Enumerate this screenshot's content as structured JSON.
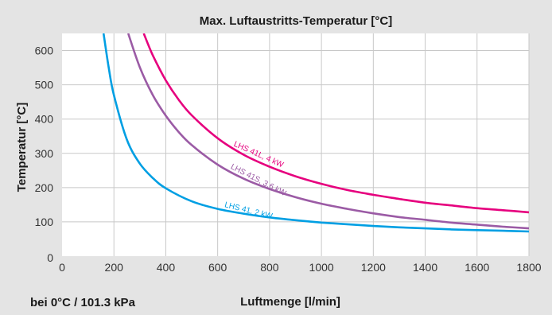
{
  "chart_data": {
    "type": "line",
    "title": "Max. Luftaustritts-Temperatur [°C]",
    "xlabel": "Luftmenge [l/min]",
    "ylabel": "Temperatur [°C]",
    "note": "bei 0°C / 101.3 kPa",
    "xlim": [
      0,
      1800
    ],
    "ylim": [
      0,
      650
    ],
    "xticks": [
      0,
      200,
      400,
      600,
      800,
      1000,
      1200,
      1400,
      1600,
      1800
    ],
    "yticks": [
      0,
      100,
      200,
      300,
      400,
      500,
      600
    ],
    "x_tick_labels": [
      "0",
      "200",
      "400",
      "600",
      "800",
      "1000",
      "1200",
      "1400",
      "1600",
      "1800"
    ],
    "y_tick_labels": [
      "0",
      "100",
      "200",
      "300",
      "400",
      "500",
      "600"
    ],
    "grid": true,
    "series": [
      {
        "name": "LHS 41L, 4 kW",
        "color": "#e6007e",
        "x": [
          315,
          350,
          400,
          450,
          500,
          600,
          700,
          800,
          900,
          1000,
          1100,
          1200,
          1300,
          1400,
          1500,
          1600,
          1700,
          1800
        ],
        "y": [
          650,
          586,
          513,
          456,
          411,
          344,
          296,
          261,
          233,
          211,
          193,
          179,
          167,
          156,
          148,
          140,
          134,
          128
        ]
      },
      {
        "name": "LHS 41S, 3.6 kW",
        "color": "#9b5ba5",
        "x": [
          255,
          300,
          350,
          400,
          450,
          500,
          600,
          700,
          800,
          900,
          1000,
          1100,
          1200,
          1300,
          1400,
          1500,
          1600,
          1700,
          1800
        ],
        "y": [
          650,
          551,
          470,
          410,
          362,
          324,
          267,
          226,
          196,
          172,
          153,
          138,
          125,
          114,
          106,
          98,
          92,
          86,
          81
        ]
      },
      {
        "name": "LHS 41, 2 kW",
        "color": "#009fe3",
        "x": [
          160,
          180,
          200,
          250,
          300,
          350,
          400,
          500,
          600,
          700,
          800,
          900,
          1000,
          1100,
          1200,
          1300,
          1400,
          1500,
          1600,
          1700,
          1800
        ],
        "y": [
          650,
          550,
          470,
          340,
          270,
          228,
          198,
          160,
          138,
          124,
          113,
          105,
          98,
          93,
          88,
          84,
          81,
          78,
          76,
          74,
          72
        ]
      }
    ]
  }
}
